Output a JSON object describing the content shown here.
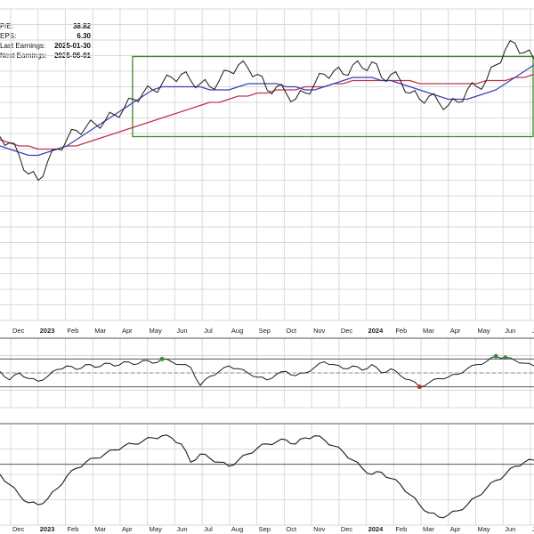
{
  "info_box": [
    {
      "label": "P/E:",
      "value": "38.82"
    },
    {
      "label": "EPS:",
      "value": "6.30"
    },
    {
      "label": "Last Earnings:",
      "value": "2025-01-30"
    },
    {
      "label": "Next Earnings:",
      "value": "2025-05-01"
    }
  ],
  "colors": {
    "price": "#1a1a1a",
    "ma_short": "#3a3fb0",
    "ma_long": "#c0334d",
    "box": "#3a8a2a",
    "grid": "#d9d9d9",
    "rsi_over": "#3a8a3a",
    "rsi_under": "#b03030"
  },
  "chart_data": [
    {
      "type": "line",
      "panel": "price",
      "x_tick_labels": [
        "Dec",
        "2023",
        "Feb",
        "Mar",
        "Apr",
        "May",
        "Jun",
        "Jul",
        "Aug",
        "Sep",
        "Oct",
        "Nov",
        "Dec",
        "2024",
        "Feb",
        "Mar",
        "Apr",
        "May",
        "Jun",
        "Jul"
      ],
      "price_series": [
        0.59,
        0.57,
        0.53,
        0.47,
        0.45,
        0.51,
        0.55,
        0.58,
        0.61,
        0.62,
        0.63,
        0.64,
        0.66,
        0.68,
        0.71,
        0.73,
        0.74,
        0.76,
        0.78,
        0.79,
        0.77,
        0.76,
        0.75,
        0.77,
        0.8,
        0.82,
        0.81,
        0.79,
        0.74,
        0.75,
        0.73,
        0.71,
        0.73,
        0.76,
        0.79,
        0.8,
        0.79,
        0.82,
        0.81,
        0.83,
        0.78,
        0.79,
        0.77,
        0.73,
        0.71,
        0.72,
        0.7,
        0.69,
        0.7,
        0.74,
        0.75,
        0.77,
        0.82,
        0.87,
        0.89,
        0.86,
        0.84
      ],
      "ma_short_series": [
        0.56,
        0.55,
        0.54,
        0.53,
        0.53,
        0.54,
        0.55,
        0.56,
        0.58,
        0.6,
        0.62,
        0.64,
        0.66,
        0.68,
        0.7,
        0.72,
        0.74,
        0.75,
        0.75,
        0.75,
        0.75,
        0.75,
        0.74,
        0.74,
        0.74,
        0.75,
        0.76,
        0.76,
        0.76,
        0.76,
        0.75,
        0.75,
        0.74,
        0.74,
        0.75,
        0.76,
        0.77,
        0.78,
        0.78,
        0.78,
        0.77,
        0.77,
        0.76,
        0.75,
        0.74,
        0.73,
        0.72,
        0.71,
        0.71,
        0.71,
        0.72,
        0.73,
        0.74,
        0.76,
        0.78,
        0.8,
        0.82
      ],
      "ma_long_series": [
        0.58,
        0.57,
        0.56,
        0.56,
        0.55,
        0.55,
        0.55,
        0.56,
        0.56,
        0.57,
        0.58,
        0.59,
        0.6,
        0.61,
        0.62,
        0.63,
        0.64,
        0.65,
        0.66,
        0.67,
        0.68,
        0.69,
        0.7,
        0.7,
        0.71,
        0.72,
        0.72,
        0.73,
        0.73,
        0.74,
        0.74,
        0.74,
        0.75,
        0.75,
        0.75,
        0.76,
        0.76,
        0.77,
        0.77,
        0.77,
        0.77,
        0.77,
        0.77,
        0.77,
        0.76,
        0.76,
        0.76,
        0.76,
        0.76,
        0.76,
        0.76,
        0.77,
        0.77,
        0.77,
        0.78,
        0.78,
        0.79
      ],
      "box": {
        "x_start_label": "Apr",
        "x_end_label": "Jul"
      }
    },
    {
      "type": "line",
      "panel": "rsi",
      "series": [
        0.52,
        0.4,
        0.5,
        0.42,
        0.38,
        0.45,
        0.55,
        0.6,
        0.55,
        0.62,
        0.58,
        0.64,
        0.6,
        0.66,
        0.62,
        0.68,
        0.64,
        0.7,
        0.66,
        0.62,
        0.58,
        0.32,
        0.45,
        0.52,
        0.6,
        0.56,
        0.5,
        0.44,
        0.4,
        0.48,
        0.52,
        0.46,
        0.5,
        0.58,
        0.66,
        0.62,
        0.56,
        0.6,
        0.54,
        0.62,
        0.5,
        0.56,
        0.46,
        0.4,
        0.3,
        0.36,
        0.42,
        0.44,
        0.48,
        0.56,
        0.62,
        0.66,
        0.74,
        0.72,
        0.68,
        0.64,
        0.6
      ],
      "overbought": 0.7,
      "midline": 0.5,
      "oversold": 0.3
    },
    {
      "type": "line",
      "panel": "momentum",
      "x_tick_labels": [
        "Dec",
        "2023",
        "Feb",
        "Mar",
        "Apr",
        "May",
        "Jun",
        "Jul",
        "Aug",
        "Sep",
        "Oct",
        "Nov",
        "Dec",
        "2024",
        "Feb",
        "Mar",
        "Apr",
        "May",
        "Jun",
        "Jul"
      ],
      "series": [
        0.5,
        0.4,
        0.3,
        0.22,
        0.2,
        0.26,
        0.36,
        0.48,
        0.56,
        0.62,
        0.66,
        0.7,
        0.74,
        0.78,
        0.8,
        0.83,
        0.86,
        0.88,
        0.86,
        0.8,
        0.62,
        0.7,
        0.66,
        0.62,
        0.58,
        0.64,
        0.7,
        0.76,
        0.8,
        0.82,
        0.84,
        0.8,
        0.86,
        0.88,
        0.84,
        0.78,
        0.72,
        0.64,
        0.56,
        0.5,
        0.52,
        0.46,
        0.4,
        0.3,
        0.2,
        0.12,
        0.08,
        0.1,
        0.14,
        0.2,
        0.28,
        0.36,
        0.44,
        0.5,
        0.58,
        0.62,
        0.64
      ],
      "reference": 0.6
    }
  ]
}
